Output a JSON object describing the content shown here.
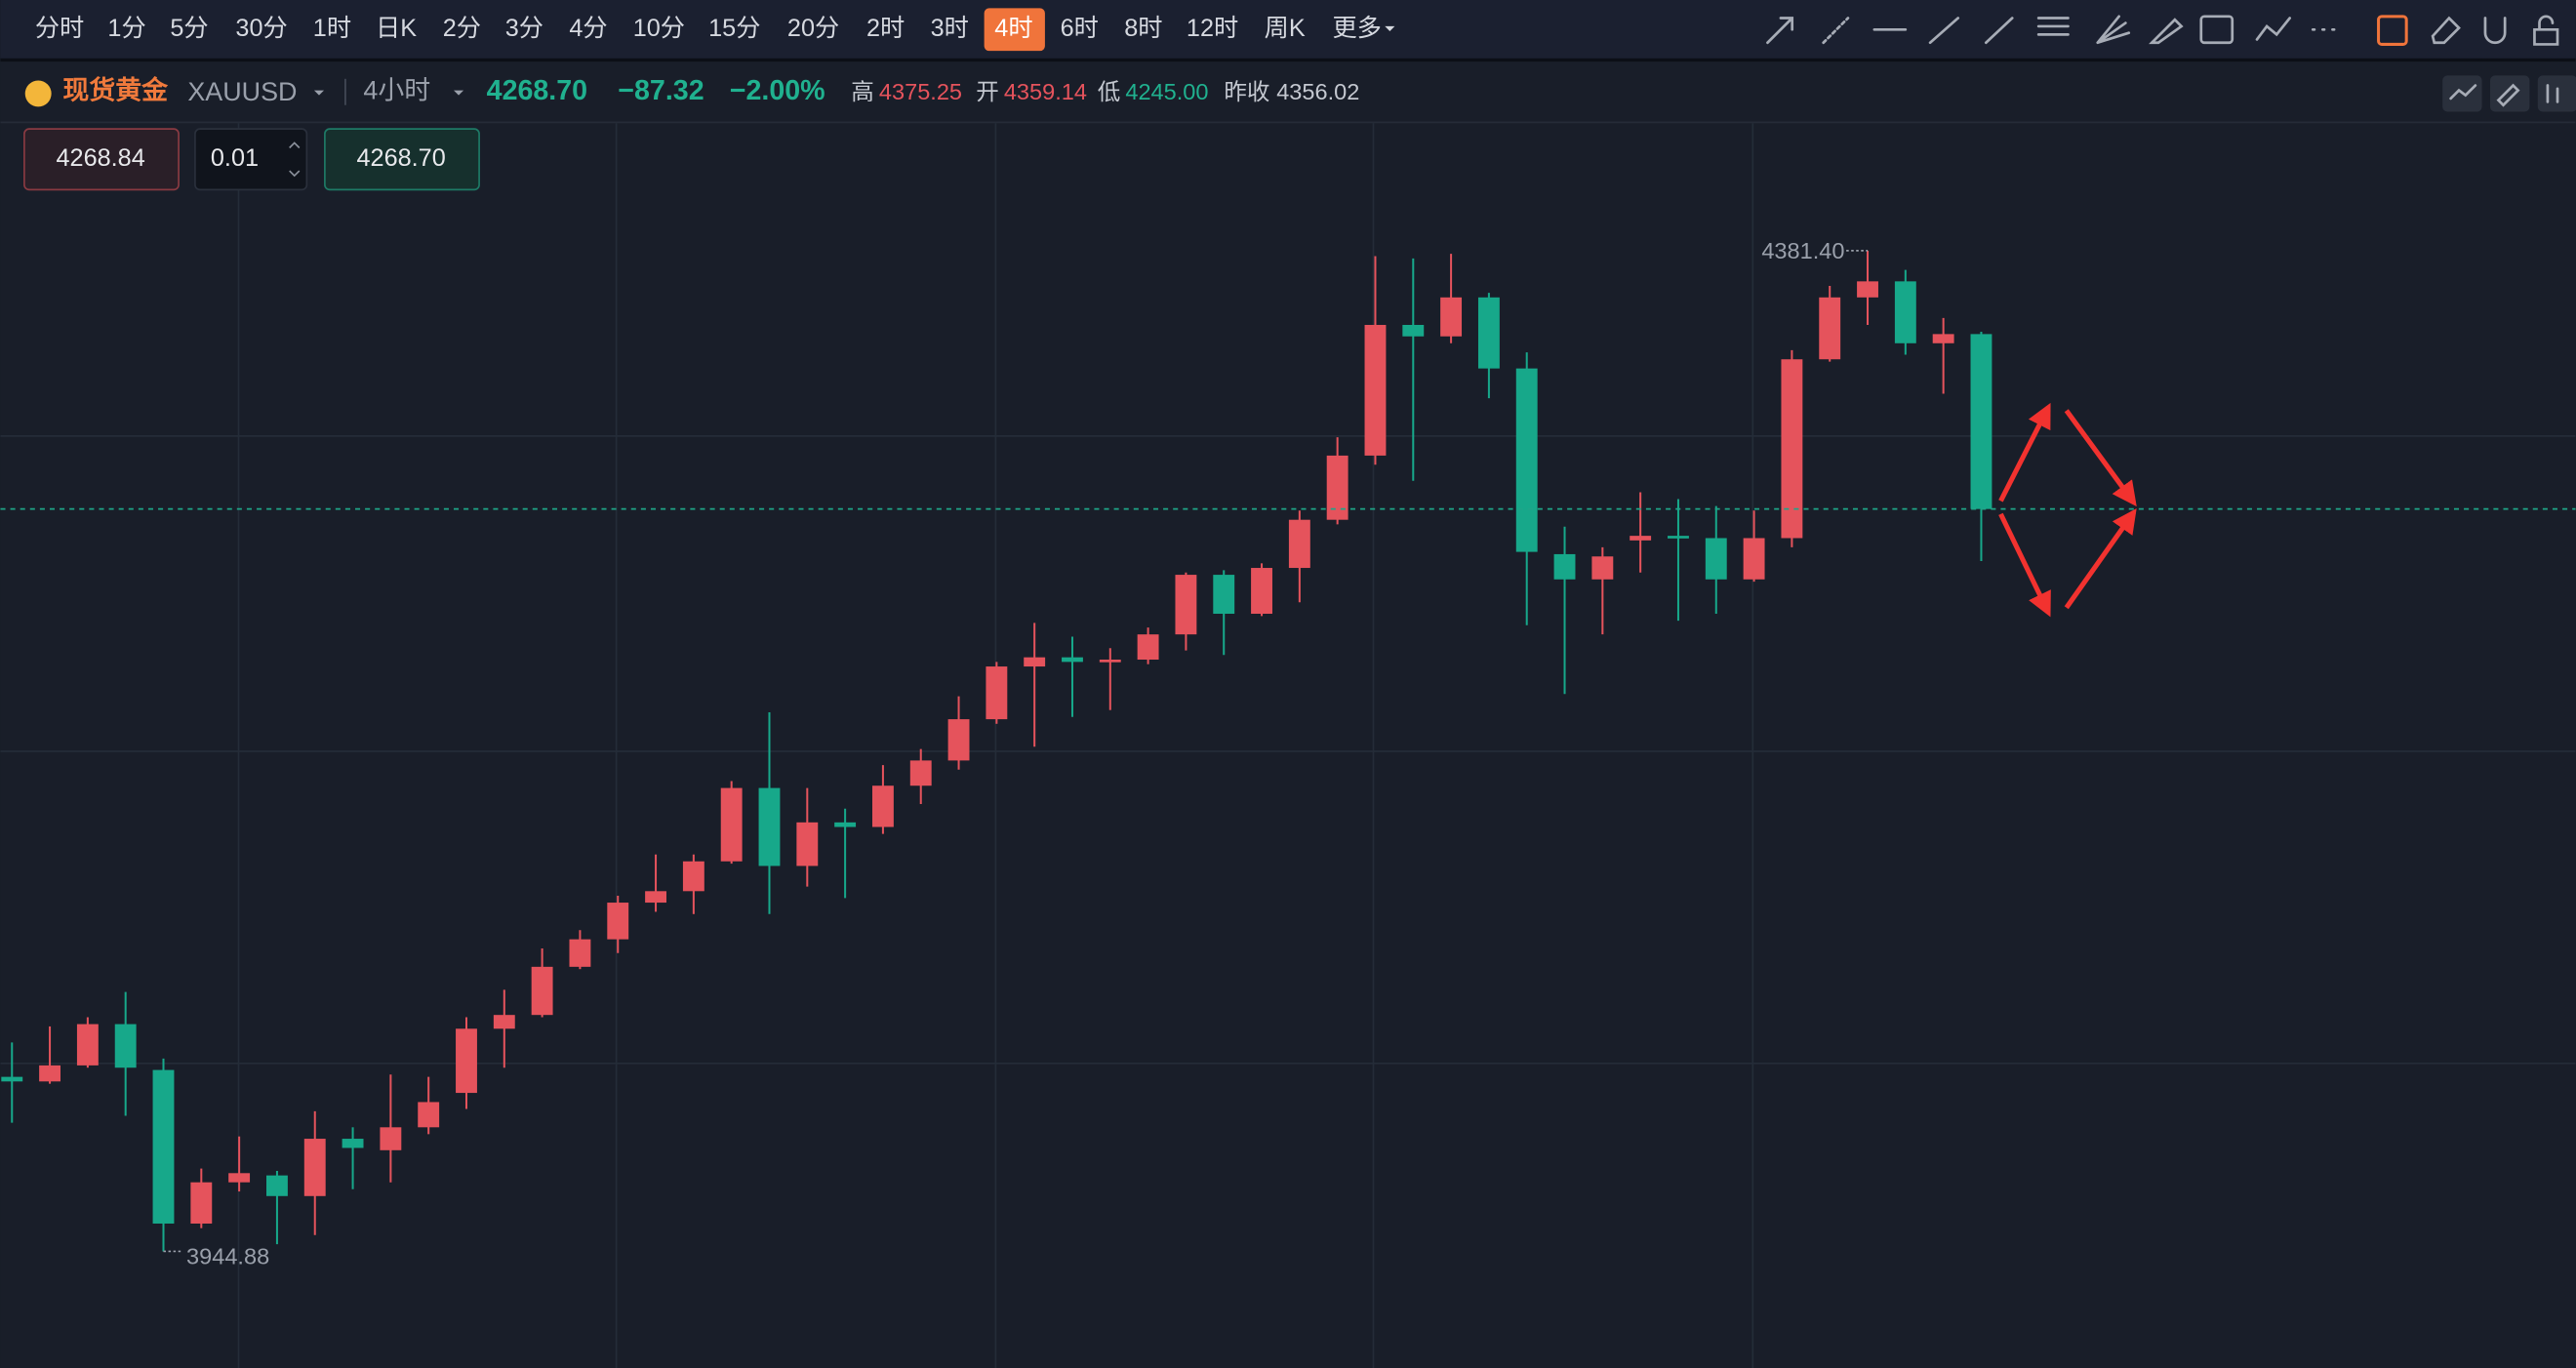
{
  "toolbar": {
    "timeframes": [
      "分时",
      "1分",
      "5分",
      "30分",
      "1时",
      "日K",
      "2分",
      "3分",
      "4分",
      "10分",
      "15分",
      "20分",
      "2时",
      "3时",
      "4时",
      "6时",
      "8时",
      "12时",
      "周K",
      "更多"
    ],
    "active": "4时"
  },
  "quote": {
    "name": "现货黄金",
    "code": "XAUUSD",
    "interval": "4小时",
    "price": "4268.70",
    "change": "−87.32",
    "change_pct": "−2.00%",
    "high_label": "高",
    "high": "4375.25",
    "open_label": "开",
    "open": "4359.14",
    "low_label": "低",
    "low": "4245.00",
    "prev_close_label": "昨收",
    "prev_close": "4356.02"
  },
  "order": {
    "sell": "4268.84",
    "lot": "0.01",
    "buy": "4268.70"
  },
  "chart_data": {
    "type": "candlestick",
    "up_color": "#e5535c",
    "down_color": "#17a88a",
    "ylim": [
      3894,
      4437
    ],
    "open": [
      4021,
      4019,
      4026,
      4044,
      4024,
      3957,
      3975,
      3978,
      3969,
      3994,
      3989,
      3999,
      4014,
      4042,
      4048,
      4069,
      4081,
      4097,
      4102,
      4115,
      4147,
      4113,
      4132,
      4130,
      4148,
      4159,
      4177,
      4200,
      4204,
      4202,
      4203,
      4214,
      4240,
      4223,
      4243,
      4264,
      4292,
      4349,
      4344,
      4361,
      4330,
      4249,
      4238,
      4255,
      4257,
      4256,
      4238,
      4256,
      4334,
      4361,
      4368,
      4341,
      4345
    ],
    "high": [
      4036,
      4043,
      4047,
      4058,
      4029,
      3981,
      3995,
      3980,
      4006,
      3999,
      4022,
      4021,
      4047,
      4059,
      4077,
      4085,
      4100,
      4118,
      4118,
      4150,
      4180,
      4147,
      4138,
      4157,
      4164,
      4187,
      4202,
      4219,
      4213,
      4208,
      4217,
      4241,
      4242,
      4245,
      4268,
      4300,
      4379,
      4378,
      4380,
      4363,
      4337,
      4261,
      4252,
      4276,
      4273,
      4270,
      4268,
      4338,
      4366,
      4381.4,
      4373,
      4352,
      4346
    ],
    "low": [
      4001,
      4018,
      4025,
      4004,
      3944.88,
      3955,
      3971,
      3948,
      3952,
      3972,
      3975,
      3996,
      4007,
      4025,
      4047,
      4068,
      4075,
      4093,
      4092,
      4114,
      4092,
      4104,
      4099,
      4127,
      4140,
      4155,
      4175,
      4165,
      4178,
      4181,
      4201,
      4207,
      4205,
      4222,
      4228,
      4262,
      4288,
      4281,
      4341,
      4317,
      4218,
      4188,
      4214,
      4241,
      4220,
      4223,
      4237,
      4252,
      4333,
      4349,
      4336,
      4319,
      4246
    ],
    "close": [
      4019,
      4026,
      4044,
      4025,
      3957,
      3975,
      3979,
      3969,
      3994,
      3990,
      3999,
      4010,
      4042,
      4048,
      4069,
      4081,
      4097,
      4102,
      4115,
      4147,
      4113,
      4132,
      4130,
      4148,
      4159,
      4177,
      4200,
      4204,
      4202,
      4203,
      4214,
      4240,
      4223,
      4243,
      4264,
      4292,
      4349,
      4344,
      4361,
      4330,
      4250,
      4238,
      4248,
      4257,
      4256,
      4238,
      4256,
      4334,
      4361,
      4368,
      4341,
      4345,
      4268.7
    ],
    "max_label": "4381.40",
    "min_label": "3944.88",
    "last_line_color": "#1fa588"
  }
}
